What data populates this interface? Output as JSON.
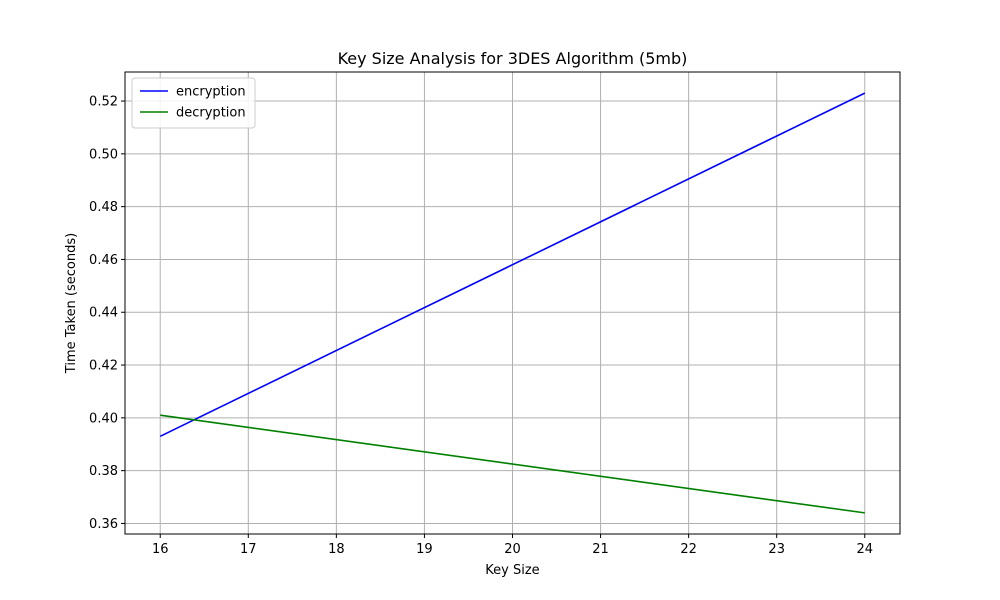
{
  "chart_data": {
    "type": "line",
    "title": "Key Size Analysis for 3DES Algorithm (5mb)",
    "xlabel": "Key Size",
    "ylabel": "Time Taken (seconds)",
    "x": [
      16,
      24
    ],
    "xlim": [
      15.6,
      24.4
    ],
    "ylim": [
      0.356,
      0.531
    ],
    "xticks": [
      16,
      17,
      18,
      19,
      20,
      21,
      22,
      23,
      24
    ],
    "yticks": [
      0.36,
      0.38,
      0.4,
      0.42,
      0.44,
      0.46,
      0.48,
      0.5,
      0.52
    ],
    "grid": true,
    "legend_position": "top-left",
    "series": [
      {
        "name": "encryption",
        "color": "#0000ff",
        "values": [
          0.393,
          0.523
        ]
      },
      {
        "name": "decryption",
        "color": "#008000",
        "values": [
          0.401,
          0.364
        ]
      }
    ]
  }
}
